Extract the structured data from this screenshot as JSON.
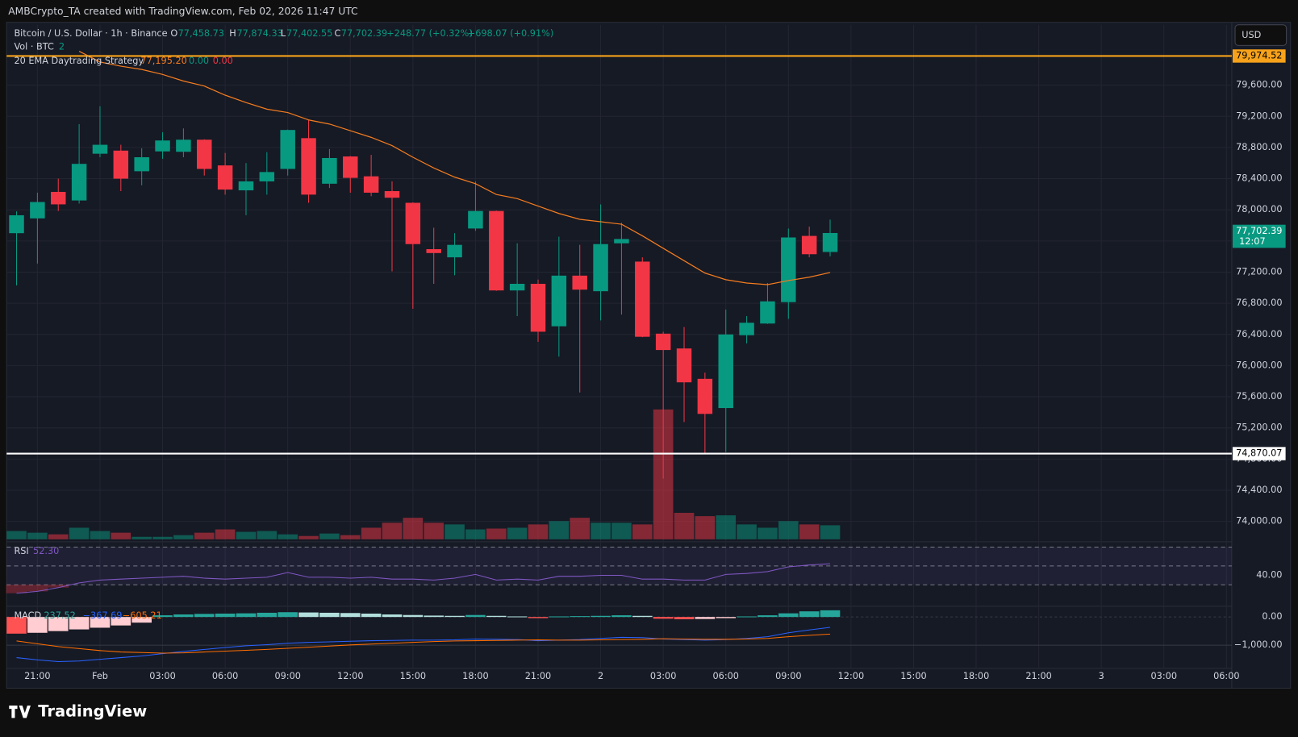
{
  "header": {
    "credit": "AMBCrypto_TA created with TradingView.com, Feb 02, 2026 11:47 UTC"
  },
  "toolbar": {
    "currency": "USD"
  },
  "legend": {
    "symbol": "Bitcoin / U.S. Dollar · 1h · Binance",
    "ohlc": [
      {
        "label": "O",
        "value": "77,458.73"
      },
      {
        "label": "H",
        "value": "77,874.33"
      },
      {
        "label": "L",
        "value": "77,402.55"
      },
      {
        "label": "C",
        "value": "77,702.39"
      }
    ],
    "change": "+248.77 (+0.32%)",
    "change2": "+698.07 (+0.91%)",
    "volume_name": "Vol · BTC",
    "volume_value": "2",
    "strategy_name": "20 EMA Daytrading Strategy",
    "strategy_values": [
      "77,195.20",
      "0.00",
      "0.00"
    ]
  },
  "footer": {
    "logo": "TradingView"
  },
  "chart_data": {
    "type": "candlestick",
    "up_color": "#089981",
    "down_color": "#f23645",
    "grid": true,
    "categories": [
      null,
      "21:00",
      null,
      null,
      "Feb",
      null,
      null,
      "03:00",
      null,
      null,
      "06:00",
      null,
      null,
      "09:00",
      null,
      null,
      "12:00",
      null,
      null,
      "15:00",
      null,
      null,
      "18:00",
      null,
      null,
      "21:00",
      null,
      null,
      "2",
      null,
      null,
      "03:00",
      null,
      null,
      "06:00",
      null,
      null,
      "09:00",
      null,
      null,
      "12:00",
      null,
      null,
      "15:00",
      null,
      null,
      "18:00",
      null,
      null,
      "21:00",
      null,
      null,
      "3",
      null,
      null,
      "03:00",
      null,
      null,
      "06:00"
    ],
    "open": [
      77700,
      77890,
      78230,
      78120,
      78720,
      78760,
      78495,
      78750,
      78745,
      78900,
      78570,
      78250,
      78365,
      78525,
      78920,
      78335,
      78685,
      78430,
      78240,
      78090,
      77495,
      77390,
      77760,
      77985,
      76965,
      77050,
      76505,
      77155,
      76955,
      77570,
      77335,
      76410,
      76220,
      75830,
      75455,
      76390,
      76540,
      76815,
      77665,
      77458.73,
      null,
      null,
      null,
      null,
      null,
      null,
      null,
      null,
      null,
      null,
      null,
      null,
      null,
      null,
      null,
      null,
      null,
      null,
      null
    ],
    "high": [
      77980,
      78220,
      78400,
      79100,
      79330,
      78835,
      78790,
      78995,
      79045,
      78905,
      78730,
      78600,
      78740,
      79030,
      79155,
      78780,
      78690,
      78705,
      78365,
      78095,
      77770,
      77700,
      78365,
      77990,
      77570,
      77105,
      77655,
      77550,
      78070,
      77835,
      77390,
      76435,
      76495,
      75910,
      76720,
      76635,
      77060,
      77760,
      77785,
      77874.33,
      null,
      null,
      null,
      null,
      null,
      null,
      null,
      null,
      null,
      null,
      null,
      null,
      null,
      null,
      null,
      null,
      null,
      null,
      null
    ],
    "low": [
      77030,
      77310,
      77985,
      78080,
      78675,
      78240,
      78315,
      78655,
      78675,
      78440,
      78195,
      77930,
      78195,
      78440,
      78090,
      78280,
      78220,
      78175,
      77210,
      76730,
      77050,
      77160,
      77730,
      76960,
      76635,
      76305,
      76115,
      75655,
      76580,
      76655,
      76365,
      74550,
      75275,
      74870.07,
      74890,
      76285,
      76535,
      76600,
      77390,
      77402.55,
      null,
      null,
      null,
      null,
      null,
      null,
      null,
      null,
      null,
      null,
      null,
      null,
      null,
      null,
      null,
      null,
      null,
      null,
      null
    ],
    "close": [
      77930,
      78100,
      78070,
      78590,
      78835,
      78400,
      78675,
      78890,
      78900,
      78525,
      78260,
      78365,
      78485,
      79025,
      78195,
      78665,
      78410,
      78220,
      78155,
      77560,
      77445,
      77550,
      77985,
      76965,
      77050,
      76435,
      77155,
      76975,
      77560,
      77625,
      76370,
      76200,
      75785,
      75380,
      76400,
      76550,
      76825,
      77645,
      77430,
      77702.39,
      null,
      null,
      null,
      null,
      null,
      null,
      null,
      null,
      null,
      null,
      null,
      null,
      null,
      null,
      null,
      null,
      null,
      null,
      null
    ],
    "volume": [
      10,
      8,
      6,
      14,
      10,
      8,
      3,
      3,
      5,
      8,
      12,
      9,
      10,
      6,
      4,
      7,
      5,
      14,
      20,
      26,
      20,
      18,
      12,
      13,
      14,
      18,
      22,
      26,
      20,
      20,
      18,
      157,
      32,
      28,
      29,
      18,
      14,
      22,
      18,
      17,
      null,
      null,
      null,
      null,
      null,
      null,
      null,
      null,
      null,
      null,
      null,
      null,
      null,
      null,
      null,
      null,
      null,
      null,
      null
    ],
    "ylim": [
      73770,
      80375
    ],
    "yticks": [
      {
        "value": 74000,
        "label": "74,000.00"
      },
      {
        "value": 74400,
        "label": "74,400.00"
      },
      {
        "value": 74800,
        "label": "74,800.00"
      },
      {
        "value": 75200,
        "label": "75,200.00"
      },
      {
        "value": 75600,
        "label": "75,600.00"
      },
      {
        "value": 76000,
        "label": "76,000.00"
      },
      {
        "value": 76400,
        "label": "76,400.00"
      },
      {
        "value": 76800,
        "label": "76,800.00"
      },
      {
        "value": 77200,
        "label": "77,200.00"
      },
      {
        "value": 77600,
        "label": "77,600.00"
      },
      {
        "value": 78000,
        "label": "78,000.00"
      },
      {
        "value": 78400,
        "label": "78,400.00"
      },
      {
        "value": 78800,
        "label": "78,800.00"
      },
      {
        "value": 79200,
        "label": "79,200.00"
      },
      {
        "value": 79600,
        "label": "79,600.00"
      }
    ],
    "ema": {
      "color": "#f57c1f",
      "values": [
        null,
        null,
        null,
        80036,
        79898,
        79844,
        79802,
        79738,
        79653,
        79589,
        79472,
        79377,
        79292,
        79249,
        79154,
        79101,
        79016,
        78930,
        78824,
        78675,
        78537,
        78420,
        78335,
        78197,
        78144,
        78048,
        77953,
        77878,
        77847,
        77815,
        77666,
        77506,
        77347,
        77188,
        77103,
        77060,
        77039,
        77092,
        77135,
        77195.2,
        null,
        null,
        null,
        null,
        null,
        null,
        null,
        null,
        null,
        null,
        null,
        null,
        null,
        null,
        null,
        null,
        null,
        null,
        null
      ]
    },
    "levels": [
      {
        "value": 79974.52,
        "label": "79,974.52",
        "color": "#f7a21b"
      },
      {
        "value": 74870.07,
        "label": "74,870.07",
        "color": "#ffffff"
      }
    ],
    "last_price_label": "77,702.39",
    "countdown": "12:07",
    "rsi": {
      "name": "RSI",
      "value_label": "52.30",
      "color": "#7e57c2",
      "ylim": [
        8,
        73
      ],
      "levels": [
        70,
        50,
        30
      ],
      "yticks": [
        {
          "value": 40,
          "label": "40.00"
        }
      ],
      "values": [
        21,
        23,
        27,
        32,
        35,
        36,
        37,
        38,
        39,
        37,
        36,
        37,
        38,
        43,
        38,
        38,
        37,
        38,
        36,
        36,
        35,
        37,
        41,
        35,
        36,
        35,
        39,
        39,
        40,
        40,
        36,
        36,
        35,
        35,
        41,
        42,
        44,
        49,
        51,
        52.3,
        null,
        null,
        null,
        null,
        null,
        null,
        null,
        null,
        null,
        null,
        null,
        null,
        null,
        null,
        null,
        null,
        null,
        null,
        null
      ]
    },
    "macd": {
      "name": "MACD",
      "value_labels": [
        "237.52",
        "−367.69",
        "−605.21"
      ],
      "ylim": [
        -1820,
        320
      ],
      "yticks": [
        {
          "value": 0,
          "label": "0.00"
        },
        {
          "value": -1000,
          "label": "−1,000.00"
        }
      ],
      "histogram": [
        -590,
        -560,
        -500,
        -440,
        -380,
        -300,
        -200,
        60,
        90,
        110,
        120,
        130,
        150,
        170,
        160,
        150,
        140,
        120,
        90,
        70,
        50,
        40,
        70,
        40,
        20,
        -40,
        20,
        30,
        40,
        60,
        40,
        -60,
        -80,
        -70,
        -40,
        20,
        60,
        130,
        200,
        237.52,
        null,
        null,
        null,
        null,
        null,
        null,
        null,
        null,
        null,
        null,
        null,
        null,
        null,
        null,
        null,
        null,
        null,
        null,
        null
      ],
      "macd_color": "#2962ff",
      "macd": [
        -1440,
        -1520,
        -1580,
        -1560,
        -1500,
        -1440,
        -1380,
        -1300,
        -1220,
        -1150,
        -1080,
        -1020,
        -980,
        -930,
        -900,
        -880,
        -860,
        -840,
        -830,
        -820,
        -820,
        -810,
        -780,
        -790,
        -800,
        -840,
        -820,
        -800,
        -760,
        -720,
        -730,
        -780,
        -800,
        -820,
        -800,
        -760,
        -700,
        -560,
        -460,
        -367.69,
        null,
        null,
        null,
        null,
        null,
        null,
        null,
        null,
        null,
        null,
        null,
        null,
        null,
        null,
        null,
        null,
        null,
        null,
        null
      ],
      "signal_color": "#ff6d00",
      "signal": [
        -850,
        -950,
        -1050,
        -1120,
        -1190,
        -1240,
        -1260,
        -1280,
        -1270,
        -1240,
        -1210,
        -1180,
        -1150,
        -1110,
        -1070,
        -1030,
        -990,
        -960,
        -930,
        -900,
        -870,
        -850,
        -840,
        -830,
        -820,
        -810,
        -820,
        -820,
        -810,
        -800,
        -790,
        -770,
        -780,
        -790,
        -790,
        -780,
        -760,
        -700,
        -650,
        -605.21,
        null,
        null,
        null,
        null,
        null,
        null,
        null,
        null,
        null,
        null,
        null,
        null,
        null,
        null,
        null,
        null,
        null,
        null,
        null
      ]
    }
  }
}
